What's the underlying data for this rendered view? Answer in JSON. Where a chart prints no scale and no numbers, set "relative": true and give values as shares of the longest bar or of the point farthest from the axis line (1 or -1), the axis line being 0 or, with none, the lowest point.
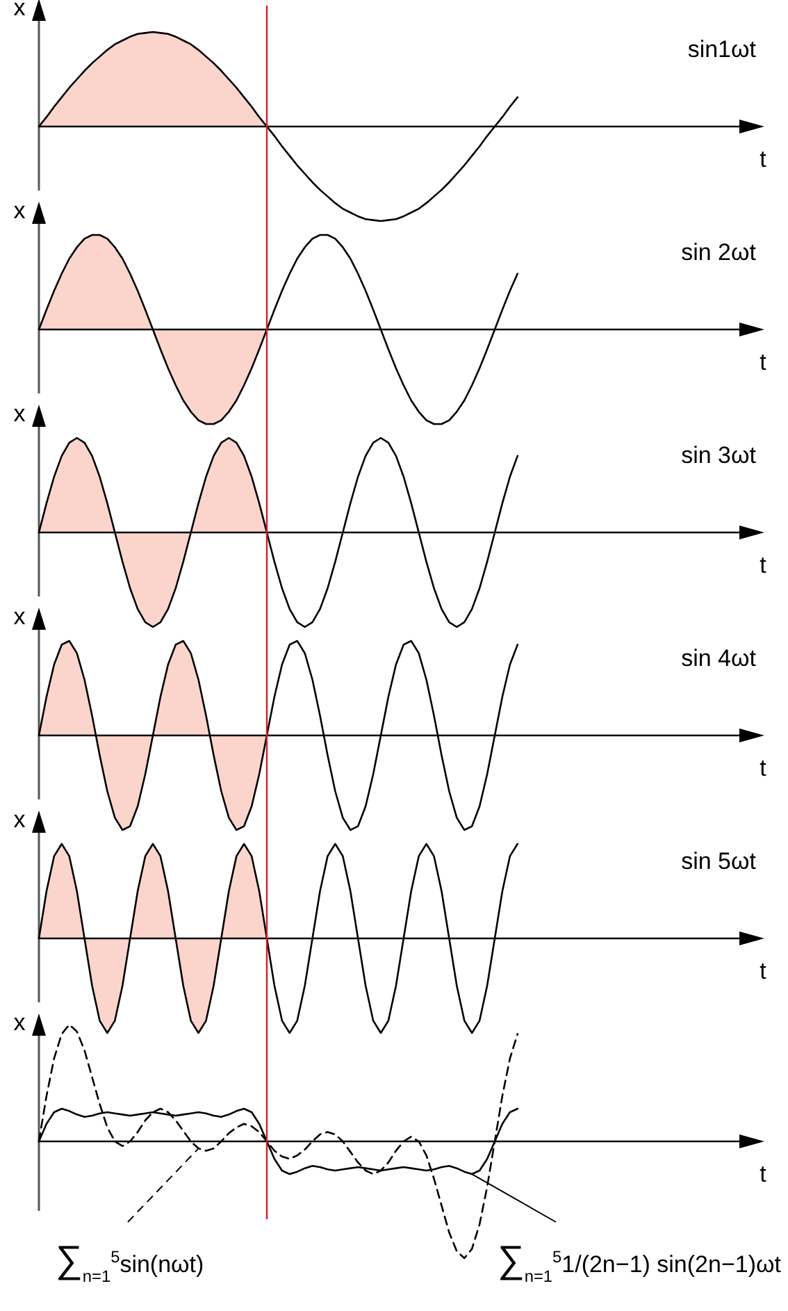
{
  "chart_data": [
    {
      "type": "line",
      "title": "sin1ωt",
      "xlabel": "t",
      "ylabel": "x",
      "relative": true,
      "tick_labels": false,
      "grid": false,
      "legend": false,
      "categories": [
        null,
        null,
        null,
        null,
        null,
        null,
        null,
        null,
        null,
        null,
        null,
        null,
        null,
        null,
        null,
        null,
        null,
        null,
        null,
        null,
        null,
        null,
        null,
        null,
        null,
        null,
        null,
        null,
        null,
        null,
        null,
        null,
        null,
        null,
        null,
        null,
        null,
        null,
        null,
        null,
        null,
        null,
        null,
        null,
        null,
        null,
        null,
        null,
        null,
        null,
        null,
        null,
        null,
        null,
        null,
        null,
        null,
        null,
        null,
        null,
        null,
        null,
        null,
        null,
        null,
        null,
        null,
        null,
        null,
        null,
        null,
        null,
        null,
        null,
        null,
        null,
        null,
        null,
        null,
        null,
        null,
        null,
        null,
        null,
        null,
        null,
        null,
        null,
        null,
        null,
        null,
        null,
        null,
        null,
        null,
        null
      ],
      "series": [
        {
          "color": "#000000",
          "values": [
            0,
            0.1,
            0.21,
            0.31,
            0.41,
            0.5,
            0.59,
            0.67,
            0.74,
            0.81,
            0.87,
            0.91,
            0.95,
            0.98,
            0.99,
            1,
            0.99,
            0.98,
            0.95,
            0.91,
            0.87,
            0.81,
            0.74,
            0.67,
            0.59,
            0.5,
            0.41,
            0.31,
            0.21,
            0.1,
            0,
            -0.1,
            -0.21,
            -0.31,
            -0.41,
            -0.5,
            -0.59,
            -0.67,
            -0.74,
            -0.81,
            -0.87,
            -0.91,
            -0.95,
            -0.98,
            -0.99,
            -1,
            -0.99,
            -0.98,
            -0.95,
            -0.91,
            -0.87,
            -0.81,
            -0.74,
            -0.67,
            -0.59,
            -0.5,
            -0.41,
            -0.31,
            -0.21,
            -0.1,
            0,
            0.1,
            0.21,
            0.31,
            null,
            null,
            null,
            null,
            null,
            null,
            null,
            null,
            null,
            null,
            null,
            null,
            null,
            null,
            null,
            null,
            null,
            null,
            null,
            null,
            null,
            null,
            null,
            null,
            null,
            null,
            null,
            null,
            null,
            null,
            null,
            null
          ]
        }
      ]
    },
    {
      "type": "line",
      "title": "sin 2ωt",
      "xlabel": "t",
      "ylabel": "x",
      "relative": true,
      "tick_labels": false,
      "grid": false,
      "legend": false,
      "categories": [
        null,
        null,
        null,
        null,
        null,
        null,
        null,
        null,
        null,
        null,
        null,
        null,
        null,
        null,
        null,
        null,
        null,
        null,
        null,
        null,
        null,
        null,
        null,
        null,
        null,
        null,
        null,
        null,
        null,
        null,
        null,
        null,
        null,
        null,
        null,
        null,
        null,
        null,
        null,
        null,
        null,
        null,
        null,
        null,
        null,
        null,
        null,
        null,
        null,
        null,
        null,
        null,
        null,
        null,
        null,
        null,
        null,
        null,
        null,
        null,
        null,
        null,
        null,
        null,
        null,
        null,
        null,
        null,
        null,
        null,
        null,
        null,
        null,
        null,
        null,
        null,
        null,
        null,
        null,
        null,
        null,
        null,
        null,
        null,
        null,
        null,
        null,
        null,
        null,
        null,
        null,
        null,
        null,
        null,
        null,
        null
      ],
      "series": [
        {
          "color": "#000000",
          "values": [
            0,
            0.21,
            0.41,
            0.59,
            0.75,
            0.87,
            0.96,
            1,
            1,
            0.96,
            0.87,
            0.75,
            0.59,
            0.41,
            0.21,
            0,
            -0.21,
            -0.41,
            -0.59,
            -0.75,
            -0.87,
            -0.96,
            -1,
            -1,
            -0.96,
            -0.87,
            -0.75,
            -0.59,
            -0.41,
            -0.21,
            0,
            0.21,
            0.41,
            0.59,
            0.75,
            0.87,
            0.96,
            1,
            1,
            0.96,
            0.87,
            0.75,
            0.59,
            0.41,
            0.21,
            0,
            -0.21,
            -0.41,
            -0.59,
            -0.75,
            -0.87,
            -0.96,
            -1,
            -1,
            -0.96,
            -0.87,
            -0.75,
            -0.59,
            -0.41,
            -0.21,
            0,
            0.21,
            0.41,
            0.59,
            null,
            null,
            null,
            null,
            null,
            null,
            null,
            null,
            null,
            null,
            null,
            null,
            null,
            null,
            null,
            null,
            null,
            null,
            null,
            null,
            null,
            null,
            null,
            null,
            null,
            null,
            null,
            null,
            null,
            null,
            null,
            null
          ]
        }
      ]
    },
    {
      "type": "line",
      "title": "sin 3ωt",
      "xlabel": "t",
      "ylabel": "x",
      "relative": true,
      "tick_labels": false,
      "grid": false,
      "legend": false,
      "categories": [
        null,
        null,
        null,
        null,
        null,
        null,
        null,
        null,
        null,
        null,
        null,
        null,
        null,
        null,
        null,
        null,
        null,
        null,
        null,
        null,
        null,
        null,
        null,
        null,
        null,
        null,
        null,
        null,
        null,
        null,
        null,
        null,
        null,
        null,
        null,
        null,
        null,
        null,
        null,
        null,
        null,
        null,
        null,
        null,
        null,
        null,
        null,
        null,
        null,
        null,
        null,
        null,
        null,
        null,
        null,
        null,
        null,
        null,
        null,
        null,
        null,
        null,
        null,
        null,
        null,
        null,
        null,
        null,
        null,
        null,
        null,
        null,
        null,
        null,
        null,
        null,
        null,
        null,
        null,
        null,
        null,
        null,
        null,
        null,
        null,
        null,
        null,
        null,
        null,
        null,
        null,
        null,
        null,
        null,
        null,
        null
      ],
      "series": [
        {
          "color": "#000000",
          "values": [
            0,
            0.31,
            0.59,
            0.81,
            0.95,
            1,
            0.95,
            0.81,
            0.59,
            0.31,
            0,
            -0.31,
            -0.59,
            -0.81,
            -0.95,
            -1,
            -0.95,
            -0.81,
            -0.59,
            -0.31,
            0,
            0.31,
            0.59,
            0.81,
            0.95,
            1,
            0.95,
            0.81,
            0.59,
            0.31,
            0,
            -0.31,
            -0.59,
            -0.81,
            -0.95,
            -1,
            -0.95,
            -0.81,
            -0.59,
            -0.31,
            0,
            0.31,
            0.59,
            0.81,
            0.95,
            1,
            0.95,
            0.81,
            0.59,
            0.31,
            0,
            -0.31,
            -0.59,
            -0.81,
            -0.95,
            -1,
            -0.95,
            -0.81,
            -0.59,
            -0.31,
            0,
            0.31,
            0.59,
            0.81,
            null,
            null,
            null,
            null,
            null,
            null,
            null,
            null,
            null,
            null,
            null,
            null,
            null,
            null,
            null,
            null,
            null,
            null,
            null,
            null,
            null,
            null,
            null,
            null,
            null,
            null,
            null,
            null,
            null,
            null,
            null,
            null
          ]
        }
      ]
    },
    {
      "type": "line",
      "title": "sin 4ωt",
      "xlabel": "t",
      "ylabel": "x",
      "relative": true,
      "tick_labels": false,
      "grid": false,
      "legend": false,
      "categories": [
        null,
        null,
        null,
        null,
        null,
        null,
        null,
        null,
        null,
        null,
        null,
        null,
        null,
        null,
        null,
        null,
        null,
        null,
        null,
        null,
        null,
        null,
        null,
        null,
        null,
        null,
        null,
        null,
        null,
        null,
        null,
        null,
        null,
        null,
        null,
        null,
        null,
        null,
        null,
        null,
        null,
        null,
        null,
        null,
        null,
        null,
        null,
        null,
        null,
        null,
        null,
        null,
        null,
        null,
        null,
        null,
        null,
        null,
        null,
        null,
        null,
        null,
        null,
        null,
        null,
        null,
        null,
        null,
        null,
        null,
        null,
        null,
        null,
        null,
        null,
        null,
        null,
        null,
        null,
        null,
        null,
        null,
        null,
        null,
        null,
        null,
        null,
        null,
        null,
        null,
        null,
        null,
        null,
        null,
        null,
        null
      ],
      "series": [
        {
          "color": "#000000",
          "values": [
            0,
            0.41,
            0.75,
            0.96,
            1,
            0.87,
            0.59,
            0.21,
            -0.21,
            -0.59,
            -0.87,
            -1,
            -0.96,
            -0.75,
            -0.41,
            0,
            0.41,
            0.75,
            0.96,
            1,
            0.87,
            0.59,
            0.21,
            -0.21,
            -0.59,
            -0.87,
            -1,
            -0.96,
            -0.75,
            -0.41,
            0,
            0.41,
            0.75,
            0.96,
            1,
            0.87,
            0.59,
            0.21,
            -0.21,
            -0.59,
            -0.87,
            -1,
            -0.96,
            -0.75,
            -0.41,
            0,
            0.41,
            0.75,
            0.96,
            1,
            0.87,
            0.59,
            0.21,
            -0.21,
            -0.59,
            -0.87,
            -1,
            -0.96,
            -0.75,
            -0.41,
            0,
            0.41,
            0.75,
            0.96,
            null,
            null,
            null,
            null,
            null,
            null,
            null,
            null,
            null,
            null,
            null,
            null,
            null,
            null,
            null,
            null,
            null,
            null,
            null,
            null,
            null,
            null,
            null,
            null,
            null,
            null,
            null,
            null,
            null,
            null,
            null,
            null
          ]
        }
      ]
    },
    {
      "type": "line",
      "title": "sin 5ωt",
      "xlabel": "t",
      "ylabel": "x",
      "relative": true,
      "tick_labels": false,
      "grid": false,
      "legend": false,
      "categories": [
        null,
        null,
        null,
        null,
        null,
        null,
        null,
        null,
        null,
        null,
        null,
        null,
        null,
        null,
        null,
        null,
        null,
        null,
        null,
        null,
        null,
        null,
        null,
        null,
        null,
        null,
        null,
        null,
        null,
        null,
        null,
        null,
        null,
        null,
        null,
        null,
        null,
        null,
        null,
        null,
        null,
        null,
        null,
        null,
        null,
        null,
        null,
        null,
        null,
        null,
        null,
        null,
        null,
        null,
        null,
        null,
        null,
        null,
        null,
        null,
        null,
        null,
        null,
        null,
        null,
        null,
        null,
        null,
        null,
        null,
        null,
        null,
        null,
        null,
        null,
        null,
        null,
        null,
        null,
        null,
        null,
        null,
        null,
        null,
        null,
        null,
        null,
        null,
        null,
        null,
        null,
        null,
        null,
        null,
        null,
        null
      ],
      "series": [
        {
          "color": "#000000",
          "values": [
            0,
            0.5,
            0.87,
            1,
            0.87,
            0.5,
            0,
            -0.5,
            -0.87,
            -1,
            -0.87,
            -0.5,
            0,
            0.5,
            0.87,
            1,
            0.87,
            0.5,
            0,
            -0.5,
            -0.87,
            -1,
            -0.87,
            -0.5,
            0,
            0.5,
            0.87,
            1,
            0.87,
            0.5,
            0,
            -0.5,
            -0.87,
            -1,
            -0.87,
            -0.5,
            0,
            0.5,
            0.87,
            1,
            0.87,
            0.5,
            0,
            -0.5,
            -0.87,
            -1,
            -0.87,
            -0.5,
            0,
            0.5,
            0.87,
            1,
            0.87,
            0.5,
            0,
            -0.5,
            -0.87,
            -1,
            -0.87,
            -0.5,
            0,
            0.5,
            0.87,
            1,
            null,
            null,
            null,
            null,
            null,
            null,
            null,
            null,
            null,
            null,
            null,
            null,
            null,
            null,
            null,
            null,
            null,
            null,
            null,
            null,
            null,
            null,
            null,
            null,
            null,
            null,
            null,
            null,
            null,
            null,
            null,
            null
          ]
        }
      ]
    },
    {
      "type": "line",
      "xlabel": "t",
      "ylabel": "x",
      "relative": true,
      "tick_labels": false,
      "grid": false,
      "legend": "bottom",
      "categories": [
        null,
        null,
        null,
        null,
        null,
        null,
        null,
        null,
        null,
        null,
        null,
        null,
        null,
        null,
        null,
        null,
        null,
        null,
        null,
        null,
        null,
        null,
        null,
        null,
        null,
        null,
        null,
        null,
        null,
        null,
        null,
        null,
        null,
        null,
        null,
        null,
        null,
        null,
        null,
        null,
        null,
        null,
        null,
        null,
        null,
        null,
        null,
        null,
        null,
        null,
        null,
        null,
        null,
        null,
        null,
        null,
        null,
        null,
        null,
        null,
        null,
        null,
        null,
        null,
        null,
        null,
        null,
        null,
        null,
        null,
        null,
        null,
        null,
        null,
        null,
        null,
        null,
        null,
        null,
        null,
        null,
        null,
        null,
        null,
        null,
        null,
        null,
        null,
        null,
        null,
        null,
        null,
        null,
        null,
        null,
        null
      ],
      "series": [
        {
          "name": "∑$_{n=1}$$^{5}$sin(nωt)",
          "color": "#000000",
          "line_style": "dashed",
          "values": [
            0,
            0.39,
            0.71,
            0.92,
            1,
            0.94,
            0.78,
            0.55,
            0.32,
            0.12,
            0,
            -0.04,
            0,
            0.08,
            0.18,
            0.25,
            0.28,
            0.25,
            0.18,
            0.09,
            0,
            -0.06,
            -0.08,
            -0.06,
            0,
            0.07,
            0.12,
            0.15,
            0.13,
            0.08,
            0,
            -0.08,
            -0.13,
            -0.15,
            -0.12,
            -0.07,
            0,
            0.06,
            0.08,
            0.06,
            0,
            -0.09,
            -0.18,
            -0.25,
            -0.28,
            -0.25,
            -0.18,
            -0.08,
            0,
            0.04,
            0,
            -0.12,
            -0.32,
            -0.55,
            -0.78,
            -0.94,
            -1,
            -0.92,
            -0.71,
            -0.39,
            0,
            0.39,
            0.71,
            0.92,
            null,
            null,
            null,
            null,
            null,
            null,
            null,
            null,
            null,
            null,
            null,
            null,
            null,
            null,
            null,
            null,
            null,
            null,
            null,
            null,
            null,
            null,
            null,
            null,
            null,
            null,
            null,
            null,
            null,
            null,
            null,
            null
          ]
        },
        {
          "name": "∑$_{n=1}$$^{5}$1/(2n−1) sin(2n−1)ωt",
          "color": "#000000",
          "line_style": "solid",
          "values": [
            0,
            0.15,
            0.25,
            0.28,
            0.26,
            0.23,
            0.21,
            0.22,
            0.24,
            0.25,
            0.24,
            0.23,
            0.22,
            0.23,
            0.24,
            0.25,
            0.24,
            0.23,
            0.22,
            0.23,
            0.24,
            0.25,
            0.24,
            0.22,
            0.21,
            0.23,
            0.26,
            0.28,
            0.25,
            0.15,
            0,
            -0.15,
            -0.25,
            -0.28,
            -0.26,
            -0.23,
            -0.21,
            -0.22,
            -0.24,
            -0.25,
            -0.24,
            -0.23,
            -0.22,
            -0.23,
            -0.24,
            -0.25,
            -0.24,
            -0.23,
            -0.22,
            -0.23,
            -0.24,
            -0.25,
            -0.24,
            -0.22,
            -0.21,
            -0.23,
            -0.26,
            -0.28,
            -0.25,
            -0.15,
            0,
            0.15,
            0.25,
            0.28,
            null,
            null,
            null,
            null,
            null,
            null,
            null,
            null,
            null,
            null,
            null,
            null,
            null,
            null,
            null,
            null,
            null,
            null,
            null,
            null,
            null,
            null,
            null,
            null,
            null,
            null,
            null,
            null,
            null,
            null,
            null,
            null
          ]
        }
      ]
    }
  ]
}
